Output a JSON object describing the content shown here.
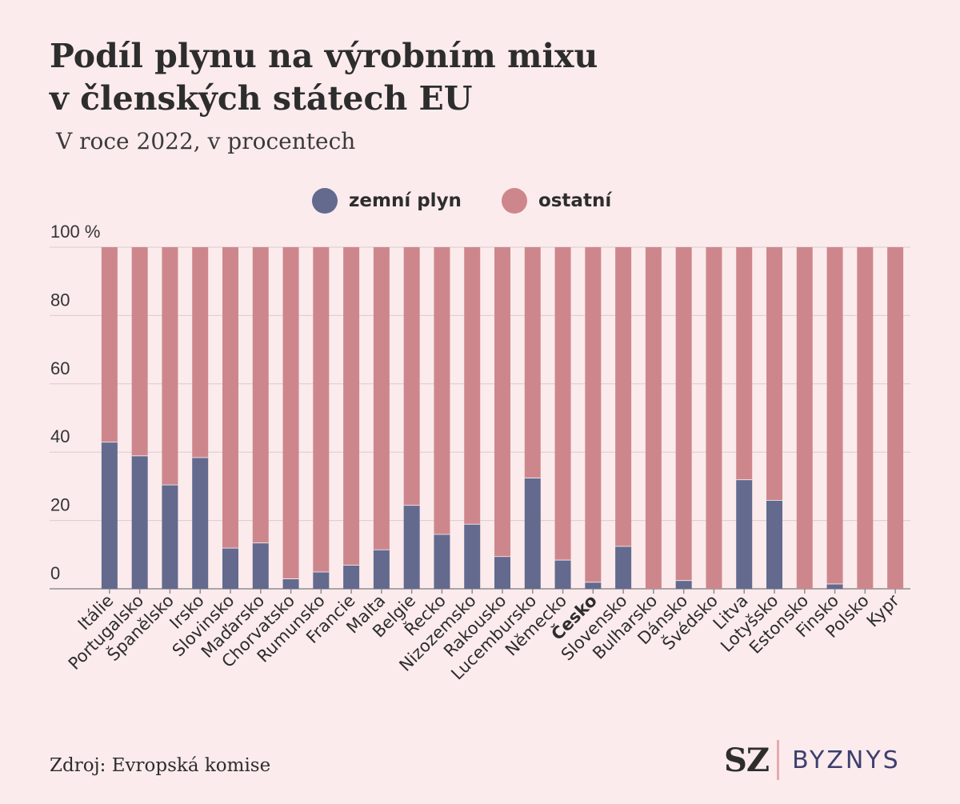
{
  "title_line1": "Podíl plynu na výrobním mixu",
  "title_line2": "v členských státech EU",
  "subtitle": "V roce 2022, v procentech",
  "source": "Zdroj: Evropská komise",
  "brand": {
    "sz": "SZ",
    "byznys": "BYZNYS"
  },
  "colors": {
    "gas": "#636a8e",
    "other": "#cd878c",
    "grid": "#d9cccd",
    "background": "#fcebec"
  },
  "chart_data": {
    "type": "bar",
    "stacked": true,
    "ylim": [
      0,
      100
    ],
    "y_ticks": [
      {
        "value": 0,
        "label": "0"
      },
      {
        "value": 20,
        "label": "20"
      },
      {
        "value": 40,
        "label": "40"
      },
      {
        "value": 60,
        "label": "60"
      },
      {
        "value": 80,
        "label": "80"
      },
      {
        "value": 100,
        "label": "100 %"
      }
    ],
    "grid": true,
    "legend_position": "top-center",
    "categories": [
      "Itálie",
      "Portugalsko",
      "Španělsko",
      "Irsko",
      "Slovinsko",
      "Maďarsko",
      "Chorvatsko",
      "Rumunsko",
      "Francie",
      "Malta",
      "Belgie",
      "Řecko",
      "Nizozemsko",
      "Rakousko",
      "Lucembursko",
      "Německo",
      "Česko",
      "Slovensko",
      "Bulharsko",
      "Dánsko",
      "Švédsko",
      "Litva",
      "Lotyšsko",
      "Estonsko",
      "Finsko",
      "Polsko",
      "Kypr"
    ],
    "highlighted_category": "Česko",
    "series": [
      {
        "name": "zemní plyn",
        "color": "#636a8e",
        "values": [
          43,
          39,
          30.5,
          38.5,
          12,
          13.5,
          3,
          5,
          7,
          11.5,
          24.5,
          16,
          19,
          9.5,
          32.5,
          8.5,
          2,
          12.5,
          0,
          2.5,
          0,
          32,
          26,
          0,
          1.5,
          0,
          0
        ]
      },
      {
        "name": "ostatní",
        "color": "#cd878c",
        "values": [
          57,
          61,
          69.5,
          61.5,
          88,
          86.5,
          97,
          95,
          93,
          88.5,
          75.5,
          84,
          81,
          90.5,
          67.5,
          91.5,
          98,
          87.5,
          100,
          97.5,
          100,
          68,
          74,
          100,
          98.5,
          100,
          100
        ]
      }
    ]
  }
}
